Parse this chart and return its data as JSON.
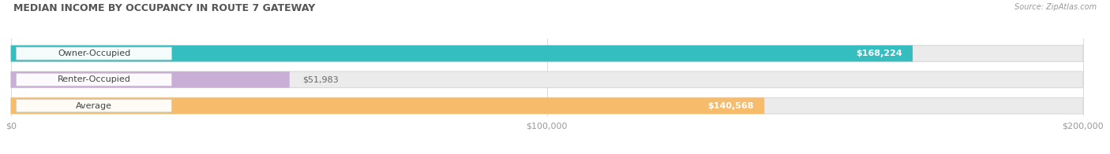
{
  "title": "MEDIAN INCOME BY OCCUPANCY IN ROUTE 7 GATEWAY",
  "source": "Source: ZipAtlas.com",
  "categories": [
    "Owner-Occupied",
    "Renter-Occupied",
    "Average"
  ],
  "values": [
    168224,
    51983,
    140568
  ],
  "bar_colors": [
    "#35bec0",
    "#c9aed6",
    "#f6bc6b"
  ],
  "bar_bg_color": "#ebebeb",
  "bar_border_color": "#d8d8d8",
  "value_labels": [
    "$168,224",
    "$51,983",
    "$140,568"
  ],
  "xlim": [
    0,
    200000
  ],
  "xticks": [
    0,
    100000,
    200000
  ],
  "xtick_labels": [
    "$0",
    "$100,000",
    "$200,000"
  ],
  "figsize": [
    14.06,
    1.96
  ],
  "dpi": 100
}
